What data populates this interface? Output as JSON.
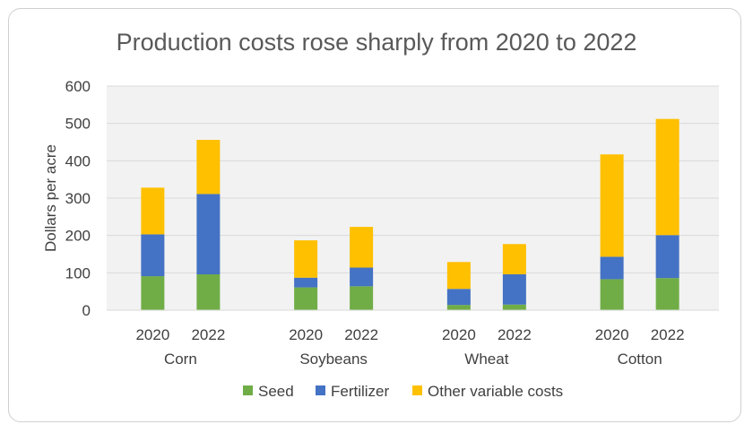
{
  "chart_data": {
    "type": "bar",
    "stacked": true,
    "title": "Production costs rose sharply from 2020 to 2022",
    "ylabel": "Dollars per acre",
    "xlabel": "",
    "ylim": [
      0,
      600
    ],
    "yticks": [
      "0",
      "100",
      "200",
      "300",
      "400",
      "500",
      "600"
    ],
    "grid": true,
    "legend_position": "bottom",
    "groups": [
      {
        "name": "Corn",
        "years": [
          "2020",
          "2022"
        ]
      },
      {
        "name": "Soybeans",
        "years": [
          "2020",
          "2022"
        ]
      },
      {
        "name": "Wheat",
        "years": [
          "2020",
          "2022"
        ]
      },
      {
        "name": "Cotton",
        "years": [
          "2020",
          "2022"
        ]
      }
    ],
    "series": [
      {
        "name": "Seed",
        "color": "#70ad47",
        "values": [
          91,
          96,
          61,
          64,
          14,
          15,
          83,
          86
        ]
      },
      {
        "name": "Fertilizer",
        "color": "#4472c4",
        "values": [
          112,
          215,
          26,
          50,
          43,
          81,
          60,
          115
        ]
      },
      {
        "name": "Other variable costs",
        "color": "#ffc000",
        "values": [
          125,
          145,
          100,
          109,
          72,
          81,
          274,
          311
        ]
      }
    ]
  }
}
